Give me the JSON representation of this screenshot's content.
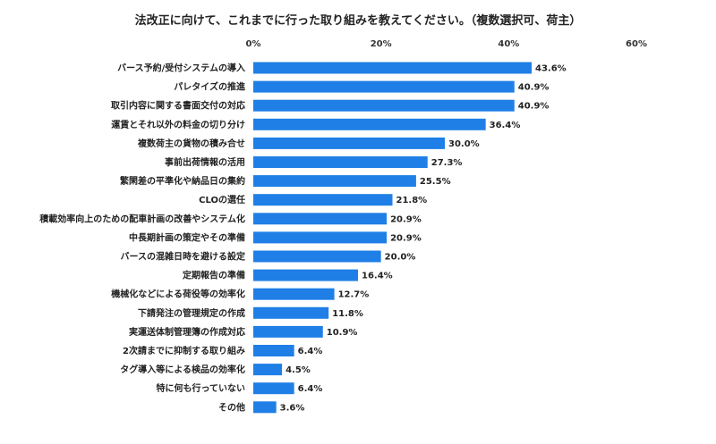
{
  "chart_data": {
    "type": "bar",
    "orientation": "horizontal",
    "title": "法改正に向けて、これまでに行った取り組みを教えてください。（複数選択可、荷主）",
    "xlim": [
      0,
      60
    ],
    "x_ticks": [
      "0%",
      "20%",
      "40%",
      "60%"
    ],
    "x_tick_values": [
      0,
      20,
      40,
      60
    ],
    "bar_color": "#1f7fe6",
    "grid": false,
    "categories": [
      "バース予約/受付システムの導入",
      "パレタイズの推進",
      "取引内容に関する書面交付の対応",
      "運賃とそれ以外の料金の切り分け",
      "複数荷主の貨物の積み合せ",
      "事前出荷情報の活用",
      "繁閑差の平準化や納品日の集約",
      "CLOの選任",
      "積載効率向上のための配車計画の改善やシステム化",
      "中長期計画の策定やその準備",
      "バースの混雑日時を避ける設定",
      "定期報告の準備",
      "機械化などによる荷役等の効率化",
      "下請発注の管理規定の作成",
      "実運送体制管理簿の作成対応",
      "2次請までに抑制する取り組み",
      "タグ導入等による検品の効率化",
      "特に何も行っていない",
      "その他"
    ],
    "values": [
      43.6,
      40.9,
      40.9,
      36.4,
      30.0,
      27.3,
      25.5,
      21.8,
      20.9,
      20.9,
      20.0,
      16.4,
      12.7,
      11.8,
      10.9,
      6.4,
      4.5,
      6.4,
      3.6
    ],
    "value_labels": [
      "43.6%",
      "40.9%",
      "40.9%",
      "36.4%",
      "30.0%",
      "27.3%",
      "25.5%",
      "21.8%",
      "20.9%",
      "20.9%",
      "20.0%",
      "16.4%",
      "12.7%",
      "11.8%",
      "10.9%",
      "6.4%",
      "4.5%",
      "6.4%",
      "3.6%"
    ]
  }
}
